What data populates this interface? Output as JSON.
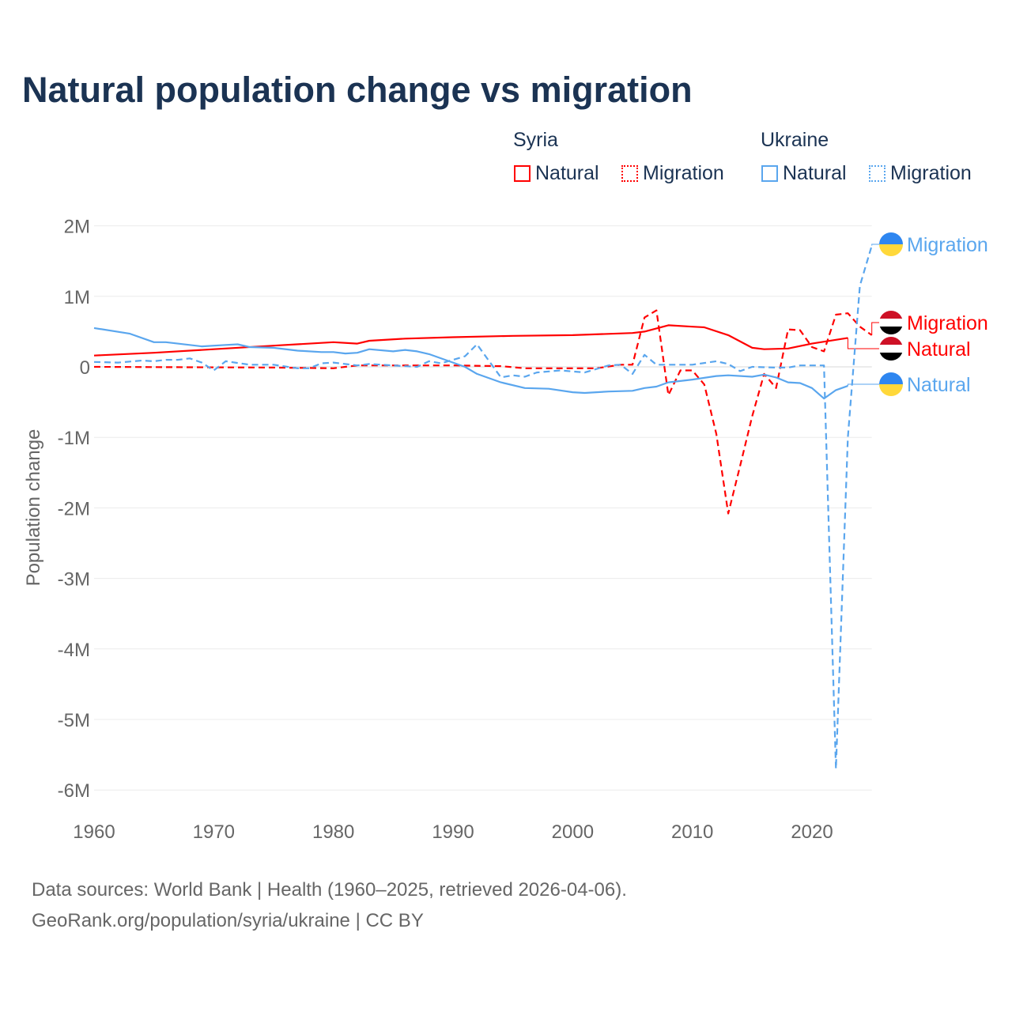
{
  "title": "Natural population change vs migration",
  "legend": {
    "groups": [
      {
        "name": "Syria",
        "items": [
          {
            "label": "Natural",
            "style": "solid",
            "color": "#ff0000"
          },
          {
            "label": "Migration",
            "style": "dotted",
            "color": "#ff0000"
          }
        ]
      },
      {
        "name": "Ukraine",
        "items": [
          {
            "label": "Natural",
            "style": "solid",
            "color": "#5aa6ee"
          },
          {
            "label": "Migration",
            "style": "dotted",
            "color": "#5aa6ee"
          }
        ]
      }
    ]
  },
  "footer": {
    "line1": "Data sources: World Bank | Health (1960–2025, retrieved 2026-04-06).",
    "line2": "GeoRank.org/population/syria/ukraine | CC BY"
  },
  "chart_data": {
    "type": "line",
    "title": "Natural population change vs migration",
    "xlabel": "",
    "ylabel": "Population change",
    "xlim": [
      1960,
      2025
    ],
    "ylim": [
      -6000000,
      2000000
    ],
    "xticks": [
      1960,
      1970,
      1980,
      1990,
      2000,
      2010,
      2020
    ],
    "yticks": [
      {
        "v": 2000000,
        "label": "2M"
      },
      {
        "v": 1000000,
        "label": "1M"
      },
      {
        "v": 0,
        "label": "0"
      },
      {
        "v": -1000000,
        "label": "-1M"
      },
      {
        "v": -2000000,
        "label": "-2M"
      },
      {
        "v": -3000000,
        "label": "-3M"
      },
      {
        "v": -4000000,
        "label": "-4M"
      },
      {
        "v": -5000000,
        "label": "-5M"
      },
      {
        "v": -6000000,
        "label": "-6M"
      }
    ],
    "grid": true,
    "series": [
      {
        "name": "Syria Natural",
        "country": "Syria",
        "kind": "Natural",
        "color": "#ff0000",
        "dash": false,
        "end_label": "Natural",
        "points": [
          [
            1960,
            0.16
          ],
          [
            1965,
            0.2
          ],
          [
            1970,
            0.25
          ],
          [
            1975,
            0.3
          ],
          [
            1980,
            0.35
          ],
          [
            1982,
            0.33
          ],
          [
            1983,
            0.37
          ],
          [
            1986,
            0.4
          ],
          [
            1990,
            0.42
          ],
          [
            1995,
            0.44
          ],
          [
            2000,
            0.45
          ],
          [
            2005,
            0.48
          ],
          [
            2006,
            0.5
          ],
          [
            2008,
            0.59
          ],
          [
            2010,
            0.57
          ],
          [
            2011,
            0.56
          ],
          [
            2013,
            0.45
          ],
          [
            2015,
            0.27
          ],
          [
            2016,
            0.25
          ],
          [
            2018,
            0.26
          ],
          [
            2020,
            0.33
          ],
          [
            2023,
            0.41
          ]
        ]
      },
      {
        "name": "Syria Migration",
        "country": "Syria",
        "kind": "Migration",
        "color": "#ff0000",
        "dash": true,
        "end_label": "Migration",
        "points": [
          [
            1960,
            0
          ],
          [
            1975,
            -0.01
          ],
          [
            1980,
            -0.02
          ],
          [
            1982,
            0.02
          ],
          [
            1990,
            0.02
          ],
          [
            1994,
            0.01
          ],
          [
            1996,
            -0.02
          ],
          [
            2002,
            -0.02
          ],
          [
            2004,
            0.03
          ],
          [
            2005,
            0.03
          ],
          [
            2006,
            0.7
          ],
          [
            2007,
            0.8
          ],
          [
            2008,
            -0.4
          ],
          [
            2009,
            -0.05
          ],
          [
            2010,
            -0.05
          ],
          [
            2011,
            -0.25
          ],
          [
            2012,
            -0.95
          ],
          [
            2013,
            -2.08
          ],
          [
            2014,
            -1.4
          ],
          [
            2015,
            -0.7
          ],
          [
            2016,
            -0.1
          ],
          [
            2017,
            -0.3
          ],
          [
            2018,
            0.53
          ],
          [
            2019,
            0.52
          ],
          [
            2020,
            0.28
          ],
          [
            2021,
            0.22
          ],
          [
            2022,
            0.74
          ],
          [
            2023,
            0.76
          ],
          [
            2024,
            0.57
          ],
          [
            2025,
            0.45
          ]
        ]
      },
      {
        "name": "Ukraine Natural",
        "country": "Ukraine",
        "kind": "Natural",
        "color": "#5aa6ee",
        "dash": false,
        "end_label": "Natural",
        "points": [
          [
            1960,
            0.55
          ],
          [
            1963,
            0.47
          ],
          [
            1965,
            0.35
          ],
          [
            1966,
            0.35
          ],
          [
            1969,
            0.29
          ],
          [
            1971,
            0.31
          ],
          [
            1972,
            0.32
          ],
          [
            1973,
            0.28
          ],
          [
            1975,
            0.27
          ],
          [
            1977,
            0.23
          ],
          [
            1979,
            0.21
          ],
          [
            1980,
            0.21
          ],
          [
            1981,
            0.19
          ],
          [
            1982,
            0.2
          ],
          [
            1983,
            0.25
          ],
          [
            1985,
            0.22
          ],
          [
            1986,
            0.24
          ],
          [
            1987,
            0.22
          ],
          [
            1988,
            0.18
          ],
          [
            1990,
            0.06
          ],
          [
            1991,
            0.0
          ],
          [
            1992,
            -0.1
          ],
          [
            1994,
            -0.22
          ],
          [
            1996,
            -0.3
          ],
          [
            1998,
            -0.31
          ],
          [
            2000,
            -0.36
          ],
          [
            2001,
            -0.37
          ],
          [
            2003,
            -0.35
          ],
          [
            2005,
            -0.34
          ],
          [
            2006,
            -0.3
          ],
          [
            2007,
            -0.28
          ],
          [
            2008,
            -0.22
          ],
          [
            2010,
            -0.18
          ],
          [
            2012,
            -0.13
          ],
          [
            2013,
            -0.12
          ],
          [
            2015,
            -0.14
          ],
          [
            2016,
            -0.11
          ],
          [
            2017,
            -0.15
          ],
          [
            2018,
            -0.22
          ],
          [
            2019,
            -0.23
          ],
          [
            2020,
            -0.3
          ],
          [
            2021,
            -0.45
          ],
          [
            2022,
            -0.33
          ],
          [
            2023,
            -0.27
          ]
        ]
      },
      {
        "name": "Ukraine Migration",
        "country": "Ukraine",
        "kind": "Migration",
        "color": "#5aa6ee",
        "dash": true,
        "end_label": "Migration",
        "points": [
          [
            1960,
            0.07
          ],
          [
            1962,
            0.06
          ],
          [
            1964,
            0.09
          ],
          [
            1965,
            0.08
          ],
          [
            1966,
            0.1
          ],
          [
            1967,
            0.1
          ],
          [
            1968,
            0.12
          ],
          [
            1969,
            0.06
          ],
          [
            1970,
            -0.05
          ],
          [
            1971,
            0.08
          ],
          [
            1973,
            0.03
          ],
          [
            1975,
            0.03
          ],
          [
            1977,
            -0.02
          ],
          [
            1978,
            -0.02
          ],
          [
            1979,
            0.05
          ],
          [
            1980,
            0.06
          ],
          [
            1982,
            0.02
          ],
          [
            1983,
            0.04
          ],
          [
            1987,
            0
          ],
          [
            1988,
            0.08
          ],
          [
            1989,
            0.05
          ],
          [
            1990,
            0.1
          ],
          [
            1991,
            0.15
          ],
          [
            1992,
            0.32
          ],
          [
            1994,
            -0.15
          ],
          [
            1995,
            -0.12
          ],
          [
            1996,
            -0.14
          ],
          [
            1997,
            -0.08
          ],
          [
            1999,
            -0.05
          ],
          [
            2001,
            -0.08
          ],
          [
            2003,
            0.02
          ],
          [
            2004,
            0.03
          ],
          [
            2005,
            -0.1
          ],
          [
            2006,
            0.17
          ],
          [
            2007,
            0.03
          ],
          [
            2010,
            0.03
          ],
          [
            2012,
            0.08
          ],
          [
            2013,
            0.04
          ],
          [
            2014,
            -0.06
          ],
          [
            2015,
            0
          ],
          [
            2017,
            -0.01
          ],
          [
            2018,
            -0.01
          ],
          [
            2019,
            0.02
          ],
          [
            2021,
            0.02
          ],
          [
            2022,
            -5.7
          ],
          [
            2023,
            -1.0
          ],
          [
            2024,
            1.15
          ],
          [
            2025,
            1.72
          ]
        ]
      }
    ],
    "units": "millions"
  }
}
